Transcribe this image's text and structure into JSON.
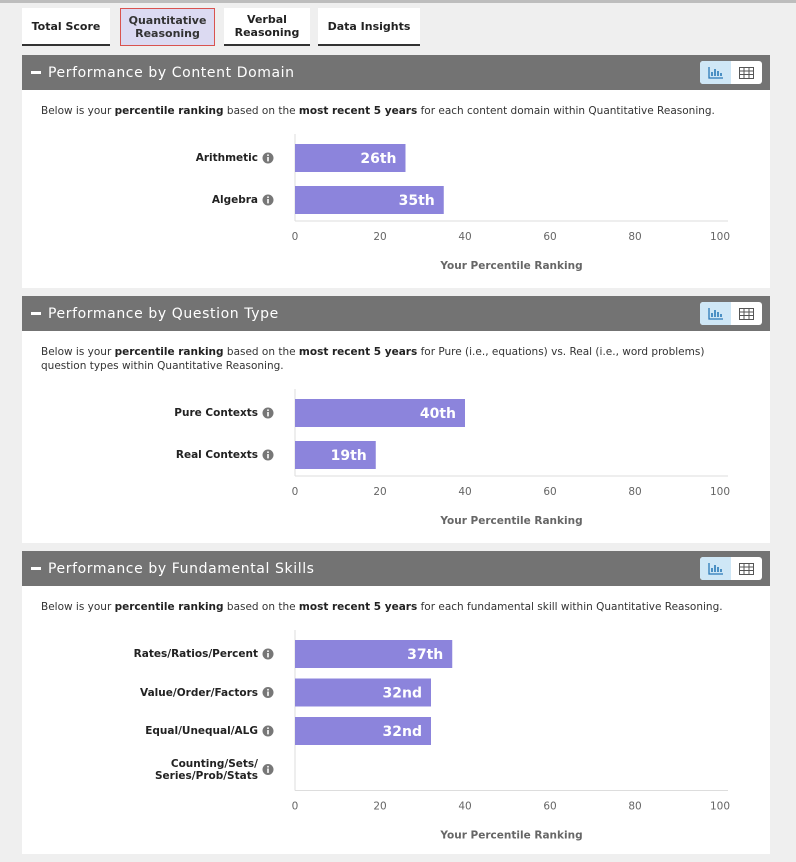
{
  "tabs": [
    "Total Score",
    "Quantitative\nReasoning",
    "Verbal\nReasoning",
    "Data Insights"
  ],
  "active_tab": 1,
  "sections": [
    {
      "title": "Performance by Content Domain",
      "description": [
        "Below is your ",
        "percentile ranking",
        " based on the ",
        "most recent 5 years",
        " for each content domain within Quantitative Reasoning."
      ],
      "chart_data": {
        "type": "bar",
        "categories": [
          "Arithmetic",
          "Algebra"
        ],
        "values": [
          26,
          35
        ],
        "value_labels": [
          "26th",
          "35th"
        ],
        "color": "#8c84dc",
        "xlim": [
          0,
          100
        ],
        "xticks": [
          0,
          20,
          40,
          60,
          80,
          100
        ],
        "x_label": "Your Percentile Ranking"
      }
    },
    {
      "title": "Performance by Question Type",
      "description": [
        "Below is your ",
        "percentile ranking",
        " based on the ",
        "most recent 5 years",
        " for Pure (i.e., equations) vs. Real (i.e., word problems) question types within Quantitative Reasoning."
      ],
      "chart_data": {
        "type": "bar",
        "categories": [
          "Pure Contexts",
          "Real Contexts"
        ],
        "values": [
          40,
          19
        ],
        "value_labels": [
          "40th",
          "19th"
        ],
        "color": "#8c84dc",
        "xlim": [
          0,
          100
        ],
        "xticks": [
          0,
          20,
          40,
          60,
          80,
          100
        ],
        "x_label": "Your Percentile Ranking"
      }
    },
    {
      "title": "Performance by Fundamental Skills",
      "description": [
        "Below is your ",
        "percentile ranking",
        " based on the ",
        "most recent 5 years",
        " for each fundamental skill within Quantitative Reasoning."
      ],
      "chart_data": {
        "type": "bar",
        "categories": [
          "Rates/Ratios/Percent",
          "Value/Order/Factors",
          "Equal/Unequal/ALG",
          "Counting/Sets/\nSeries/Prob/Stats"
        ],
        "values": [
          37,
          32,
          32,
          null
        ],
        "value_labels": [
          "37th",
          "32nd",
          "32nd",
          null
        ],
        "color": "#8c84dc",
        "xlim": [
          0,
          100
        ],
        "xticks": [
          0,
          20,
          40,
          60,
          80,
          100
        ],
        "x_label": "Your Percentile Ranking"
      }
    }
  ]
}
